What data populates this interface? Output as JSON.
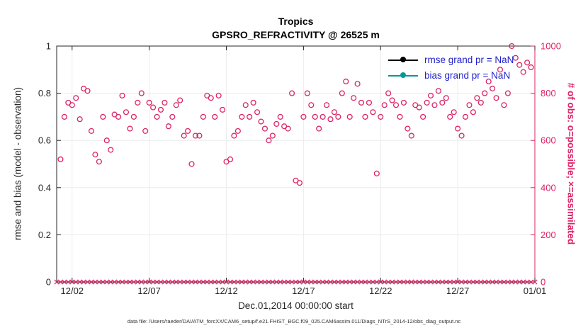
{
  "title": {
    "line1": "Tropics",
    "line2": "GPSRO_REFRACTIVITY @ 26525 m"
  },
  "axes": {
    "ylabel_left": "rmse and bias (model - observation)",
    "ylabel_right": "# of obs: o=possible; ×=assimilated",
    "xlabel": "Dec.01,2014 00:00:00 start",
    "x_range": [
      0,
      31
    ],
    "x_ticks": [
      1,
      6,
      11,
      16,
      21,
      26,
      31
    ],
    "x_ticklabels": [
      "12/02",
      "12/07",
      "12/12",
      "12/17",
      "12/22",
      "12/27",
      "01/01"
    ],
    "yleft_range": [
      0,
      1
    ],
    "yleft_ticks": [
      0,
      0.2,
      0.4,
      0.6,
      0.8,
      1
    ],
    "yleft_ticklabels": [
      "0",
      "0.2",
      "0.4",
      "0.6",
      "0.8",
      "1"
    ],
    "yright_range": [
      0,
      1000
    ],
    "yright_ticks": [
      0,
      200,
      400,
      600,
      800,
      1000
    ],
    "yright_ticklabels": [
      "0",
      "200",
      "400",
      "600",
      "800",
      "1000"
    ],
    "grid": true
  },
  "legend": {
    "text_color": "#2121cc",
    "items": [
      {
        "label": "rmse grand pr = NaN",
        "color": "#000000"
      },
      {
        "label": "bias grand pr = NaN",
        "color": "#009999"
      }
    ]
  },
  "colors": {
    "obs_count": "#dd2266",
    "axis": "#262626",
    "grid": "#ececec"
  },
  "caption": "data file: /Users/raeder/DAI/ATM_forcXX/CAM6_setup/f.e21.FHIST_BGC.f09_025.CAM6assim.011/Diags_NTrS_2014-12/obs_diag_output.nc",
  "chart_data": {
    "type": "scatter",
    "title": "Tropics — GPSRO_REFRACTIVITY @ 26525 m",
    "xlabel": "Dec.01,2014 00:00:00 start",
    "ylabel_left": "rmse and bias (model - observation)",
    "ylabel_right": "# of obs: o=possible; ×=assimilated",
    "x_unit": "days since Dec.01,2014 00:00",
    "xlim": [
      0,
      31
    ],
    "ylim_right": [
      0,
      1000
    ],
    "legend_position": "top-right-inside",
    "series": [
      {
        "name": "possible obs count",
        "marker": "o",
        "axis": "right",
        "x_start_day": 0.25,
        "x_step_days": 0.25,
        "values": [
          520,
          700,
          760,
          750,
          780,
          690,
          820,
          810,
          640,
          540,
          510,
          700,
          600,
          560,
          710,
          700,
          790,
          720,
          650,
          700,
          760,
          800,
          640,
          760,
          740,
          700,
          730,
          760,
          660,
          700,
          750,
          770,
          620,
          640,
          500,
          620,
          620,
          700,
          790,
          780,
          700,
          790,
          730,
          510,
          520,
          620,
          640,
          700,
          750,
          700,
          760,
          720,
          680,
          650,
          600,
          620,
          670,
          700,
          660,
          650,
          800,
          430,
          420,
          700,
          800,
          750,
          700,
          650,
          700,
          750,
          690,
          720,
          700,
          800,
          850,
          700,
          780,
          840,
          760,
          700,
          760,
          720,
          460,
          700,
          750,
          800,
          770,
          750,
          700,
          760,
          650,
          620,
          750,
          740,
          700,
          760,
          790,
          750,
          810,
          760,
          780,
          700,
          720,
          650,
          620,
          700,
          750,
          720,
          780,
          760,
          800,
          850,
          820,
          780,
          900,
          750,
          800,
          1000,
          950,
          920,
          890,
          930,
          910
        ]
      },
      {
        "name": "assimilated obs count",
        "marker": "x",
        "axis": "right",
        "x_start_day": 0,
        "x_step_days": 0.25,
        "value_constant": 0,
        "count": 125
      }
    ]
  }
}
